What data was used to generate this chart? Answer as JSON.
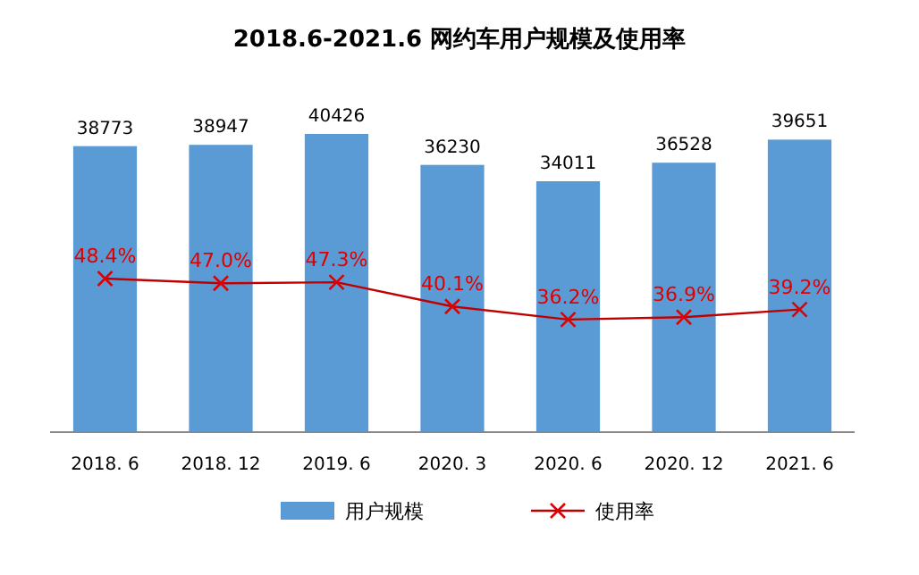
{
  "chart_data": {
    "type": "bar",
    "title": "2018.6-2021.6 网约车用户规模及使用率",
    "categories": [
      "2018. 6",
      "2018. 12",
      "2019. 6",
      "2020. 3",
      "2020. 6",
      "2020. 12",
      "2021. 6"
    ],
    "series": [
      {
        "name": "用户规模",
        "color": "#5b9bd5",
        "values": [
          38773,
          38947,
          40426,
          36230,
          34011,
          36528,
          39651
        ]
      },
      {
        "name": "使用率",
        "type": "line",
        "axis": "y2",
        "color": "#c00000",
        "marker": "cross",
        "values": [
          48.4,
          47.0,
          47.3,
          40.1,
          36.2,
          36.9,
          39.2
        ],
        "value_labels": [
          "48.4%",
          "47.0%",
          "47.3%",
          "40.1%",
          "36.2%",
          "36.9%",
          "39.2%"
        ]
      }
    ],
    "data_labels": true,
    "legend": "bottom"
  }
}
